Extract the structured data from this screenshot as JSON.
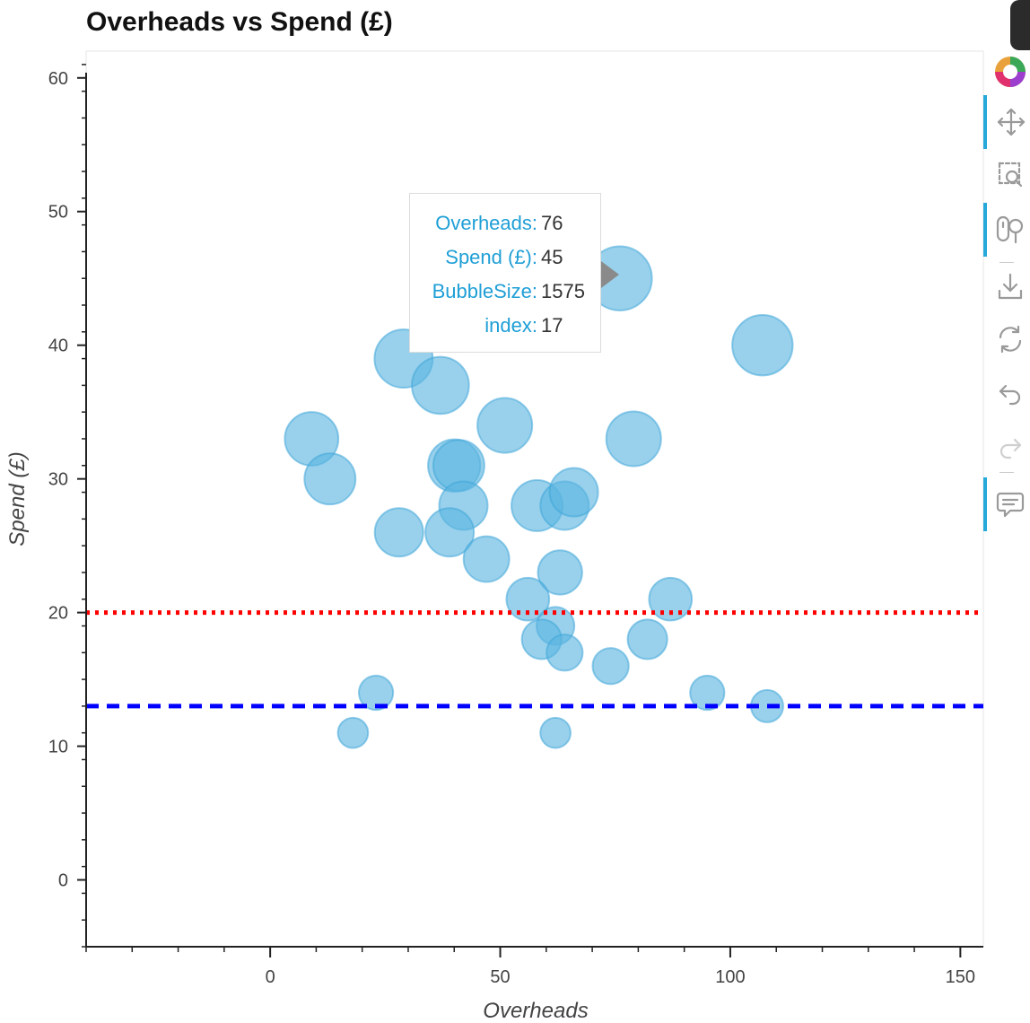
{
  "chart_data": {
    "type": "scatter",
    "title": "Overheads vs Spend (£)",
    "xlabel": "Overheads",
    "ylabel": "Spend (£)",
    "xlim": [
      -40,
      155
    ],
    "ylim": [
      -5,
      62
    ],
    "x_ticks": [
      0,
      50,
      100,
      150
    ],
    "y_ticks": [
      0,
      10,
      20,
      30,
      40,
      50,
      60
    ],
    "grid": false,
    "points": [
      {
        "x": 76,
        "y": 45,
        "size": 1575
      },
      {
        "x": 107,
        "y": 40,
        "size": 1400
      },
      {
        "x": 29,
        "y": 39,
        "size": 1300
      },
      {
        "x": 37,
        "y": 37,
        "size": 1250
      },
      {
        "x": 51,
        "y": 34,
        "size": 1150
      },
      {
        "x": 79,
        "y": 33,
        "size": 1150
      },
      {
        "x": 9,
        "y": 33,
        "size": 1100
      },
      {
        "x": 13,
        "y": 30,
        "size": 1000
      },
      {
        "x": 40,
        "y": 31,
        "size": 1050
      },
      {
        "x": 41,
        "y": 31,
        "size": 1000
      },
      {
        "x": 42,
        "y": 28,
        "size": 900
      },
      {
        "x": 58,
        "y": 28,
        "size": 1000
      },
      {
        "x": 64,
        "y": 28,
        "size": 900
      },
      {
        "x": 66,
        "y": 29,
        "size": 900
      },
      {
        "x": 28,
        "y": 26,
        "size": 900
      },
      {
        "x": 39,
        "y": 26,
        "size": 900
      },
      {
        "x": 47,
        "y": 24,
        "size": 800
      },
      {
        "x": 63,
        "y": 23,
        "size": 750
      },
      {
        "x": 56,
        "y": 21,
        "size": 700
      },
      {
        "x": 87,
        "y": 21,
        "size": 700
      },
      {
        "x": 62,
        "y": 19,
        "size": 550
      },
      {
        "x": 59,
        "y": 18,
        "size": 600
      },
      {
        "x": 82,
        "y": 18,
        "size": 600
      },
      {
        "x": 64,
        "y": 17,
        "size": 500
      },
      {
        "x": 74,
        "y": 16,
        "size": 500
      },
      {
        "x": 23,
        "y": 14,
        "size": 450
      },
      {
        "x": 95,
        "y": 14,
        "size": 450
      },
      {
        "x": 108,
        "y": 13,
        "size": 400
      },
      {
        "x": 18,
        "y": 11,
        "size": 350
      },
      {
        "x": 62,
        "y": 11,
        "size": 350
      }
    ],
    "reference_lines": [
      {
        "y": 20,
        "color": "#ff0000",
        "style": "dotted"
      },
      {
        "y": 13,
        "color": "#0000ff",
        "style": "dashed"
      }
    ],
    "bubble_color": "#5ab4e0"
  },
  "tooltip": {
    "rows": [
      {
        "key": "Overheads:",
        "value": "76"
      },
      {
        "key": "Spend (£):",
        "value": "45"
      },
      {
        "key": "BubbleSize:",
        "value": "1575"
      },
      {
        "key": "index:",
        "value": "17"
      }
    ]
  },
  "toolbar": {
    "tools": [
      {
        "name": "bokeh-logo-icon",
        "active": false
      },
      {
        "name": "pan-icon",
        "active": true
      },
      {
        "name": "box-zoom-icon",
        "active": false
      },
      {
        "name": "wheel-zoom-icon",
        "active": true
      },
      {
        "name": "save-icon",
        "active": false
      },
      {
        "name": "reset-icon",
        "active": false
      },
      {
        "name": "undo-icon",
        "active": false
      },
      {
        "name": "redo-icon",
        "active": false
      },
      {
        "name": "hover-icon",
        "active": true
      }
    ]
  }
}
